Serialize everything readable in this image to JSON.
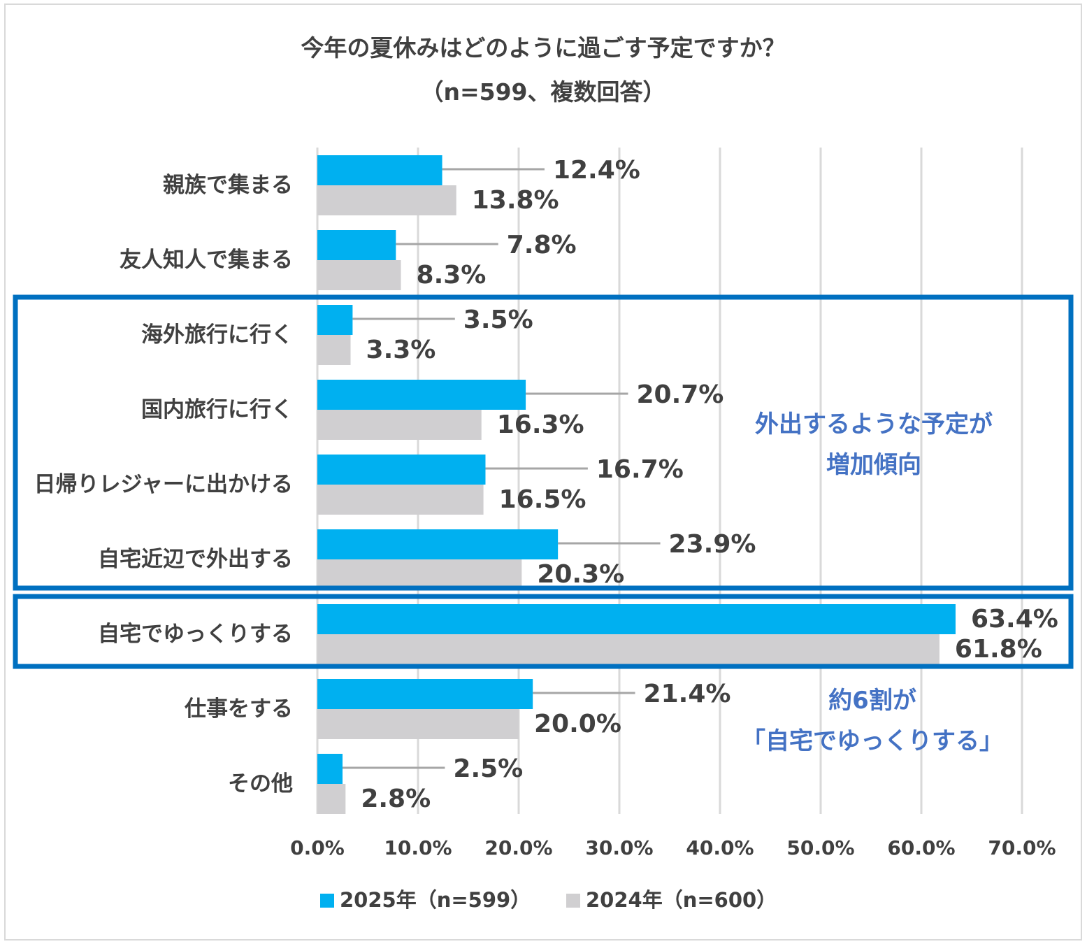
{
  "chart_data": {
    "type": "bar",
    "orientation": "horizontal",
    "title": "今年の夏休みはどのように過ごす予定ですか？",
    "subtitle": "（n=599、複数回答）",
    "categories": [
      "親族で集まる",
      "友人知人で集まる",
      "海外旅行に行く",
      "国内旅行に行く",
      "日帰りレジャーに出かける",
      "自宅近辺で外出する",
      "自宅でゆっくりする",
      "仕事をする",
      "その他"
    ],
    "series": [
      {
        "name": "2025年（n=599）",
        "color": "#00b0f0",
        "values": [
          12.4,
          7.8,
          3.5,
          20.7,
          16.7,
          23.9,
          63.4,
          21.4,
          2.5
        ]
      },
      {
        "name": "2024年（n=600）",
        "color": "#d0cfd1",
        "values": [
          13.8,
          8.3,
          3.3,
          16.3,
          16.5,
          20.3,
          61.8,
          20.0,
          2.8
        ]
      }
    ],
    "xlim": [
      0,
      70
    ],
    "xticks": [
      0,
      10,
      20,
      30,
      40,
      50,
      60,
      70
    ],
    "tick_labels": [
      "0.0%",
      "10.0%",
      "20.0%",
      "30.0%",
      "40.0%",
      "50.0%",
      "60.0%",
      "70.0%"
    ],
    "value_suffix": "%",
    "grid": true,
    "legend_position": "bottom",
    "annotations": {
      "outing_note": [
        "外出するような予定が",
        "増加傾向"
      ],
      "home_note": [
        "約6割が",
        "「自宅でゆっくりする」"
      ]
    }
  },
  "colors": {
    "highlight_box": "#0070c0",
    "annotation_text": "#4472c4",
    "grid": "#d9d9d9",
    "text": "#404040",
    "leader": "#a6a6a6"
  }
}
